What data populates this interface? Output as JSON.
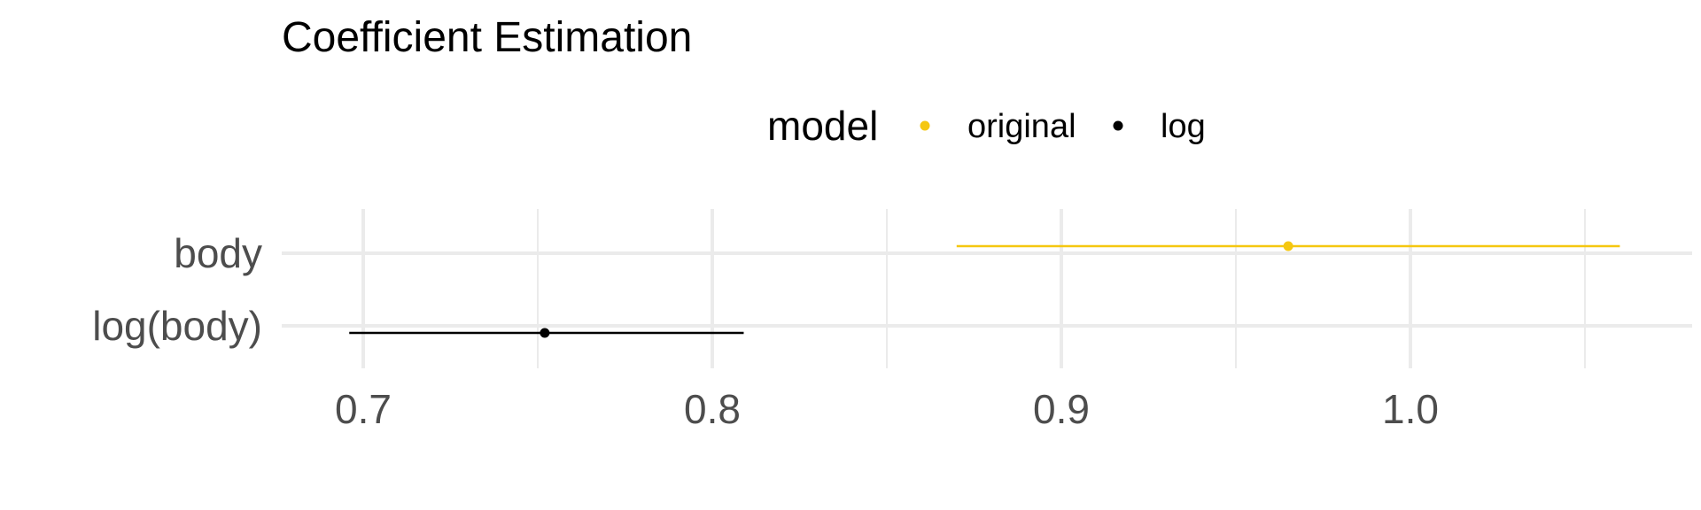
{
  "chart_data": {
    "type": "scatter",
    "title": "Coefficient Estimation",
    "xlabel": "",
    "ylabel": "",
    "legend": {
      "title": "model",
      "placement": "top-center"
    },
    "categories": [
      "body",
      "log(body)"
    ],
    "xlim": [
      0.68,
      1.08
    ],
    "x_ticks": [
      0.7,
      0.8,
      0.9,
      1.0
    ],
    "x_tick_labels": [
      "0.7",
      "0.8",
      "0.9",
      "1.0"
    ],
    "grid": true,
    "series": [
      {
        "name": "original",
        "color": "#F5C710",
        "points": [
          {
            "category": "body",
            "estimate": 0.965,
            "lower": 0.87,
            "upper": 1.06
          }
        ]
      },
      {
        "name": "log",
        "color": "#000000",
        "points": [
          {
            "category": "log(body)",
            "estimate": 0.752,
            "lower": 0.696,
            "upper": 0.809
          }
        ]
      }
    ]
  }
}
